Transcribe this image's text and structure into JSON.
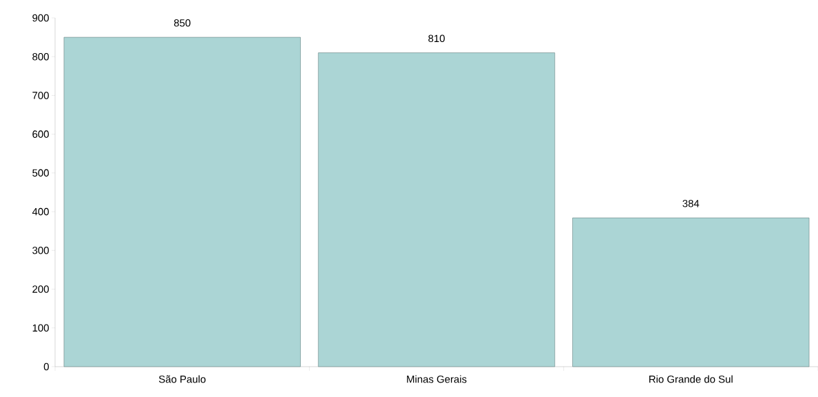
{
  "chart_data": {
    "type": "bar",
    "categories": [
      "São Paulo",
      "Minas Gerais",
      "Rio Grande do Sul"
    ],
    "values": [
      850,
      810,
      384
    ],
    "color": "#abd5d5",
    "ylim": [
      0,
      900
    ],
    "yticks": [
      0,
      100,
      200,
      300,
      400,
      500,
      600,
      700,
      800,
      900
    ],
    "data_labels": true
  }
}
